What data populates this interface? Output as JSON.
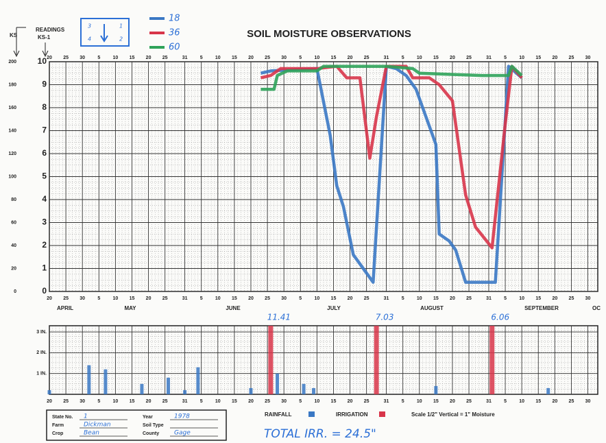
{
  "chart_data": [
    {
      "type": "line",
      "title": "SOIL MOISTURE OBSERVATIONS",
      "y_label": "READINGS",
      "y_sublabel": "KS-1",
      "y2_label": "KS",
      "legend_box": [
        "3",
        "1",
        "4",
        "2"
      ],
      "xlim": [
        0,
        166
      ],
      "xticks": [
        {
          "value": 0,
          "label": "20"
        },
        {
          "value": 5,
          "label": "25"
        },
        {
          "value": 10,
          "label": "30"
        },
        {
          "value": 15,
          "label": "5"
        },
        {
          "value": 20,
          "label": "10"
        },
        {
          "value": 25,
          "label": "15"
        },
        {
          "value": 30,
          "label": "20"
        },
        {
          "value": 35,
          "label": "25"
        },
        {
          "value": 41,
          "label": "31"
        },
        {
          "value": 46,
          "label": "5"
        },
        {
          "value": 51,
          "label": "10"
        },
        {
          "value": 56,
          "label": "15"
        },
        {
          "value": 61,
          "label": "20"
        },
        {
          "value": 66,
          "label": "25"
        },
        {
          "value": 71,
          "label": "30"
        },
        {
          "value": 76,
          "label": "5"
        },
        {
          "value": 81,
          "label": "10"
        },
        {
          "value": 86,
          "label": "15"
        },
        {
          "value": 91,
          "label": "20"
        },
        {
          "value": 96,
          "label": "25"
        },
        {
          "value": 102,
          "label": "31"
        },
        {
          "value": 107,
          "label": "5"
        },
        {
          "value": 112,
          "label": "10"
        },
        {
          "value": 117,
          "label": "15"
        },
        {
          "value": 122,
          "label": "20"
        },
        {
          "value": 127,
          "label": "25"
        },
        {
          "value": 133,
          "label": "31"
        },
        {
          "value": 138,
          "label": "5"
        },
        {
          "value": 143,
          "label": "10"
        },
        {
          "value": 148,
          "label": "15"
        },
        {
          "value": 153,
          "label": "20"
        },
        {
          "value": 158,
          "label": "25"
        },
        {
          "value": 163,
          "label": "30"
        }
      ],
      "months": [
        "APRIL",
        "MAY",
        "JUNE",
        "JULY",
        "AUGUST",
        "SEPTEMBER",
        "OC"
      ],
      "ylim": [
        0,
        10
      ],
      "yticks": [
        0,
        1,
        2,
        3,
        4,
        5,
        6,
        7,
        8,
        9,
        10
      ],
      "y2lim": [
        0,
        200
      ],
      "y2ticks": [
        0,
        20,
        40,
        60,
        80,
        100,
        120,
        140,
        160,
        180,
        200
      ],
      "grid": true,
      "series": [
        {
          "name": "18",
          "color": "#3a78c4",
          "x": [
            64,
            67,
            81,
            85,
            87,
            89,
            92,
            95,
            98,
            102,
            105,
            108,
            111,
            114,
            117,
            118,
            121,
            123,
            126,
            135,
            139,
            143
          ],
          "values": [
            9.5,
            9.6,
            9.7,
            6.8,
            4.6,
            3.7,
            1.6,
            1.0,
            0.4,
            9.8,
            9.7,
            9.4,
            8.8,
            7.6,
            6.4,
            2.5,
            2.2,
            1.8,
            0.4,
            0.4,
            9.8,
            9.3
          ]
        },
        {
          "name": "36",
          "color": "#d8354a",
          "x": [
            64,
            67,
            70,
            81,
            87,
            90,
            94,
            97,
            99,
            102,
            108,
            110,
            115,
            118,
            122,
            126,
            129,
            134,
            138,
            140,
            143
          ],
          "values": [
            9.3,
            9.4,
            9.7,
            9.7,
            9.8,
            9.3,
            9.3,
            5.8,
            7.6,
            9.8,
            9.8,
            9.3,
            9.3,
            9.0,
            8.3,
            4.2,
            2.8,
            1.9,
            7.3,
            9.8,
            9.3
          ]
        },
        {
          "name": "60",
          "color": "#2fa35a",
          "x": [
            64,
            68,
            69,
            72,
            81,
            83,
            102,
            110,
            112,
            131,
            139,
            140,
            143
          ],
          "values": [
            8.8,
            8.8,
            9.4,
            9.6,
            9.6,
            9.8,
            9.8,
            9.7,
            9.5,
            9.4,
            9.4,
            9.8,
            9.4
          ]
        }
      ]
    },
    {
      "type": "bar",
      "xlim": [
        0,
        166
      ],
      "xticks": [
        {
          "value": 0,
          "label": "20"
        },
        {
          "value": 5,
          "label": "25"
        },
        {
          "value": 10,
          "label": "30"
        },
        {
          "value": 15,
          "label": "5"
        },
        {
          "value": 20,
          "label": "10"
        },
        {
          "value": 25,
          "label": "15"
        },
        {
          "value": 30,
          "label": "20"
        },
        {
          "value": 35,
          "label": "25"
        },
        {
          "value": 41,
          "label": "31"
        },
        {
          "value": 46,
          "label": "5"
        },
        {
          "value": 51,
          "label": "10"
        },
        {
          "value": 56,
          "label": "15"
        },
        {
          "value": 61,
          "label": "20"
        },
        {
          "value": 66,
          "label": "25"
        },
        {
          "value": 71,
          "label": "30"
        },
        {
          "value": 76,
          "label": "5"
        },
        {
          "value": 81,
          "label": "10"
        },
        {
          "value": 86,
          "label": "15"
        },
        {
          "value": 91,
          "label": "20"
        },
        {
          "value": 96,
          "label": "25"
        },
        {
          "value": 102,
          "label": "31"
        },
        {
          "value": 107,
          "label": "5"
        },
        {
          "value": 112,
          "label": "10"
        },
        {
          "value": 117,
          "label": "15"
        },
        {
          "value": 122,
          "label": "20"
        },
        {
          "value": 127,
          "label": "25"
        },
        {
          "value": 133,
          "label": "31"
        },
        {
          "value": 138,
          "label": "5"
        },
        {
          "value": 143,
          "label": "10"
        },
        {
          "value": 148,
          "label": "15"
        },
        {
          "value": 153,
          "label": "20"
        },
        {
          "value": 158,
          "label": "25"
        },
        {
          "value": 163,
          "label": "30"
        }
      ],
      "ylim": [
        0,
        3.3
      ],
      "yticks": [
        {
          "value": 1,
          "label": "1 IN."
        },
        {
          "value": 2,
          "label": "2 IN."
        },
        {
          "value": 3,
          "label": "3 IN."
        }
      ],
      "series": [
        {
          "name": "RAINFALL",
          "color": "#3a78c4",
          "x": [
            0,
            12,
            17,
            28,
            36,
            41,
            45,
            61,
            69,
            77,
            80,
            117,
            151
          ],
          "values": [
            0.2,
            1.4,
            1.2,
            0.5,
            0.8,
            0.2,
            1.3,
            0.3,
            1.0,
            0.5,
            0.3,
            0.4,
            0.3
          ]
        },
        {
          "name": "IRRIGATION",
          "color": "#d8354a",
          "x": [
            67,
            99,
            134
          ],
          "values": [
            3.3,
            3.3,
            3.3
          ],
          "notes": [
            "11.41",
            "7.03",
            "6.06"
          ]
        }
      ],
      "scale_note": "Scale 1/2\" Vertical = 1\" Moisture"
    }
  ],
  "form": {
    "fields": [
      {
        "label": "State No.",
        "value": "1"
      },
      {
        "label": "Farm",
        "value": "Dickman"
      },
      {
        "label": "Crop",
        "value": "Bean"
      },
      {
        "label": "Year",
        "value": "1978"
      },
      {
        "label": "Soil Type"
      },
      {
        "label": "County",
        "value": "Gage"
      }
    ]
  },
  "total_note": "TOTAL IRR. = 24.5\""
}
